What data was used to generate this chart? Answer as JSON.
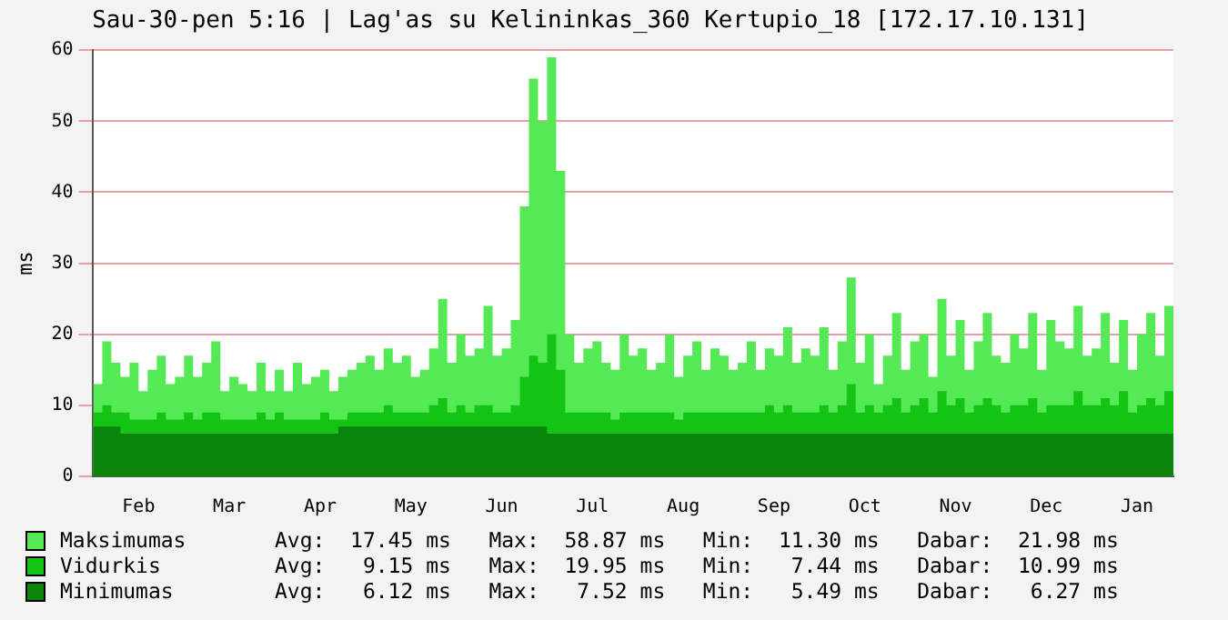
{
  "chart_data": {
    "type": "area",
    "title": "Sau-30-pen 5:16 | Lag'as su Kelininkas_360 Kertupio_18 [172.17.10.131]",
    "ylabel": "ms",
    "categories": [
      null,
      null,
      null,
      null,
      null,
      "Feb",
      null,
      null,
      null,
      null,
      null,
      null,
      null,
      null,
      null,
      "Mar",
      null,
      null,
      null,
      null,
      null,
      null,
      null,
      null,
      null,
      "Apr",
      null,
      null,
      null,
      null,
      null,
      null,
      null,
      null,
      null,
      "May",
      null,
      null,
      null,
      null,
      null,
      null,
      null,
      null,
      null,
      "Jun",
      null,
      null,
      null,
      null,
      null,
      null,
      null,
      null,
      null,
      "Jul",
      null,
      null,
      null,
      null,
      null,
      null,
      null,
      null,
      null,
      "Aug",
      null,
      null,
      null,
      null,
      null,
      null,
      null,
      null,
      null,
      "Sep",
      null,
      null,
      null,
      null,
      null,
      null,
      null,
      null,
      null,
      "Oct",
      null,
      null,
      null,
      null,
      null,
      null,
      null,
      null,
      null,
      "Nov",
      null,
      null,
      null,
      null,
      null,
      null,
      null,
      null,
      null,
      "Dec",
      null,
      null,
      null,
      null,
      null,
      null,
      null,
      null,
      null,
      "Jan",
      null,
      null,
      null,
      null
    ],
    "series": [
      {
        "name": "Maksimumas",
        "color": "#55ea55",
        "values": [
          13,
          19,
          16,
          14,
          16,
          12,
          15,
          17,
          13,
          14,
          17,
          14,
          16,
          19,
          12,
          14,
          13,
          12,
          16,
          12,
          15,
          12,
          16,
          13,
          14,
          15,
          12,
          14,
          15,
          16,
          17,
          15,
          18,
          16,
          17,
          14,
          15,
          18,
          25,
          16,
          20,
          17,
          18,
          24,
          17,
          18,
          22,
          38,
          56,
          50,
          59,
          43,
          20,
          16,
          18,
          19,
          16,
          15,
          20,
          17,
          18,
          15,
          16,
          20,
          14,
          17,
          19,
          15,
          18,
          17,
          15,
          16,
          19,
          15,
          18,
          17,
          21,
          16,
          18,
          17,
          21,
          15,
          19,
          28,
          16,
          20,
          13,
          17,
          23,
          15,
          19,
          20,
          14,
          25,
          17,
          22,
          15,
          19,
          23,
          17,
          16,
          20,
          18,
          23,
          15,
          22,
          19,
          18,
          24,
          17,
          18,
          23,
          16,
          22,
          15,
          20,
          23,
          17,
          24,
          22
        ]
      },
      {
        "name": "Vidurkis",
        "color": "#14c414",
        "values": [
          9,
          10,
          9,
          9,
          8,
          8,
          8,
          9,
          8,
          8,
          9,
          8,
          9,
          9,
          8,
          8,
          8,
          8,
          9,
          8,
          9,
          8,
          8,
          8,
          8,
          9,
          8,
          8,
          9,
          9,
          9,
          9,
          10,
          9,
          9,
          9,
          9,
          10,
          11,
          9,
          10,
          9,
          10,
          10,
          9,
          9,
          10,
          14,
          17,
          16,
          20,
          15,
          9,
          9,
          9,
          9,
          9,
          8,
          9,
          9,
          9,
          9,
          9,
          9,
          8,
          9,
          9,
          9,
          9,
          9,
          9,
          9,
          9,
          9,
          10,
          9,
          10,
          9,
          9,
          9,
          10,
          9,
          10,
          13,
          9,
          10,
          9,
          10,
          11,
          9,
          10,
          11,
          9,
          12,
          10,
          11,
          9,
          10,
          11,
          10,
          9,
          10,
          10,
          11,
          9,
          10,
          10,
          10,
          12,
          10,
          10,
          11,
          10,
          12,
          9,
          10,
          11,
          10,
          12,
          11
        ]
      },
      {
        "name": "Minimumas",
        "color": "#0a840a",
        "values": [
          7,
          7,
          7,
          6,
          6,
          6,
          6,
          6,
          6,
          6,
          6,
          6,
          6,
          6,
          6,
          6,
          6,
          6,
          6,
          6,
          6,
          6,
          6,
          6,
          6,
          6,
          6,
          7,
          7,
          7,
          7,
          7,
          7,
          7,
          7,
          7,
          7,
          7,
          7,
          7,
          7,
          7,
          7,
          7,
          7,
          7,
          7,
          7,
          7,
          7,
          6,
          6,
          6,
          6,
          6,
          6,
          6,
          6,
          6,
          6,
          6,
          6,
          6,
          6,
          6,
          6,
          6,
          6,
          6,
          6,
          6,
          6,
          6,
          6,
          6,
          6,
          6,
          6,
          6,
          6,
          6,
          6,
          6,
          6,
          6,
          6,
          6,
          6,
          6,
          6,
          6,
          6,
          6,
          6,
          6,
          6,
          6,
          6,
          6,
          6,
          6,
          6,
          6,
          6,
          6,
          6,
          6,
          6,
          6,
          6,
          6,
          6,
          6,
          6,
          6,
          6,
          6,
          6,
          6,
          6
        ]
      }
    ],
    "annotations": [
      "Avg:  17.45 ms   Max:  58.87 ms   Min:  11.30 ms   Dabar:  21.98 ms",
      "Avg:   9.15 ms   Max:  19.95 ms   Min:   7.44 ms   Dabar:  10.99 ms",
      "Avg:   6.12 ms   Max:   7.52 ms   Min:   5.49 ms   Dabar:   6.27 ms"
    ],
    "ylim": [
      0,
      60
    ],
    "yticks": [
      0,
      10,
      20,
      30,
      40,
      50,
      60
    ],
    "grid": "y",
    "legend": "bottom"
  }
}
